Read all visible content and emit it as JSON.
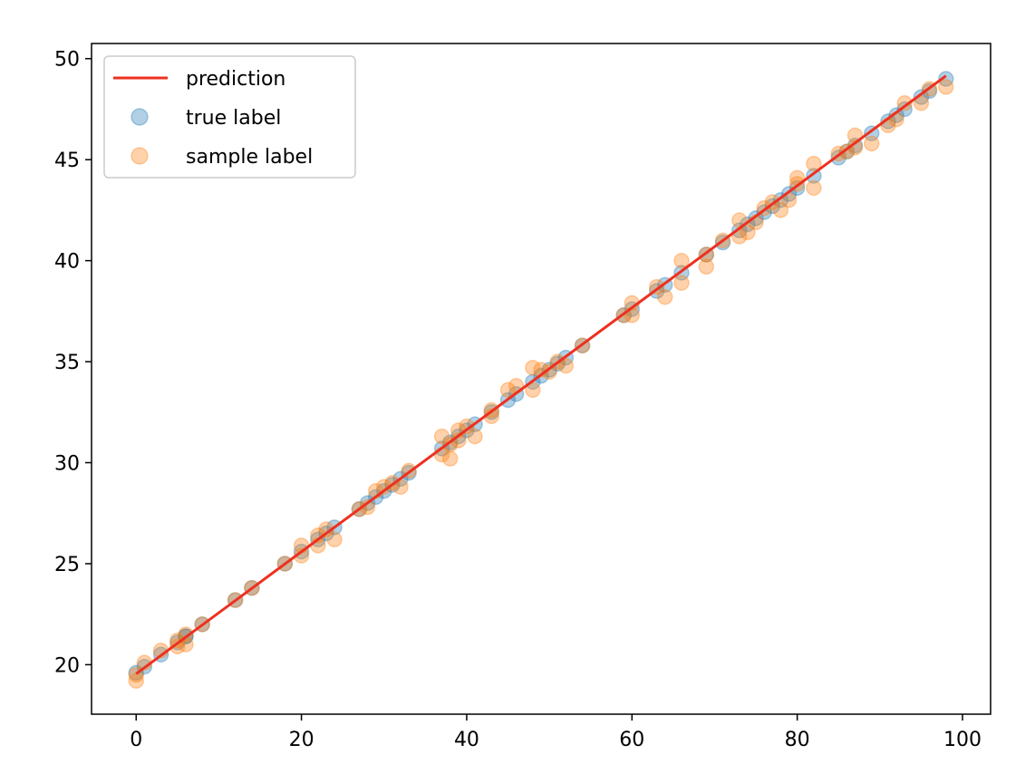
{
  "chart_data": {
    "type": "scatter",
    "title": "",
    "xlabel": "",
    "ylabel": "",
    "xlim": [
      -5.4,
      103.4
    ],
    "ylim": [
      17.55,
      50.75
    ],
    "xticks": [
      0,
      20,
      40,
      60,
      80,
      100
    ],
    "yticks": [
      20,
      25,
      30,
      35,
      40,
      45,
      50
    ],
    "xtick_labels": [
      "0",
      "20",
      "40",
      "60",
      "80",
      "100"
    ],
    "ytick_labels": [
      "20",
      "25",
      "30",
      "35",
      "40",
      "45",
      "50"
    ],
    "grid": false,
    "legend_position": "top-left",
    "series": [
      {
        "name": "prediction",
        "kind": "line",
        "color": "#ee3020",
        "x": [
          0,
          98
        ],
        "y": [
          19.55,
          49.15
        ]
      },
      {
        "name": "true label",
        "kind": "scatter",
        "color": "#1f77b4",
        "alpha": 0.35,
        "x": [
          0,
          1,
          3,
          5,
          6,
          6,
          8,
          12,
          14,
          18,
          20,
          22,
          23,
          24,
          27,
          28,
          29,
          30,
          31,
          32,
          33,
          37,
          38,
          39,
          40,
          41,
          43,
          45,
          46,
          48,
          49,
          50,
          51,
          52,
          54,
          59,
          60,
          63,
          64,
          66,
          69,
          71,
          73,
          74,
          75,
          76,
          77,
          78,
          79,
          80,
          82,
          85,
          86,
          87,
          89,
          91,
          92,
          93,
          95,
          96,
          98
        ],
        "y": [
          19.6,
          19.9,
          20.5,
          21.1,
          21.4,
          21.4,
          22.0,
          23.2,
          23.8,
          25.0,
          25.6,
          26.2,
          26.5,
          26.8,
          27.7,
          28.0,
          28.3,
          28.6,
          28.9,
          29.2,
          29.5,
          30.7,
          31.0,
          31.3,
          31.6,
          31.9,
          32.5,
          33.1,
          33.4,
          34.0,
          34.3,
          34.6,
          34.9,
          35.2,
          35.8,
          37.3,
          37.6,
          38.5,
          38.8,
          39.4,
          40.3,
          40.9,
          41.5,
          41.8,
          42.1,
          42.4,
          42.7,
          43.0,
          43.3,
          43.6,
          44.2,
          45.1,
          45.4,
          45.7,
          46.3,
          46.9,
          47.2,
          47.5,
          48.1,
          48.4,
          49.0
        ]
      },
      {
        "name": "sample label",
        "kind": "scatter",
        "color": "#ff7f0e",
        "alpha": 0.35,
        "x": [
          0,
          0,
          1,
          3,
          5,
          5,
          6,
          6,
          8,
          12,
          14,
          18,
          20,
          20,
          22,
          22,
          23,
          24,
          27,
          28,
          29,
          30,
          31,
          32,
          33,
          37,
          37,
          38,
          38,
          39,
          39,
          40,
          41,
          43,
          43,
          45,
          46,
          48,
          48,
          49,
          50,
          51,
          52,
          54,
          59,
          60,
          60,
          63,
          64,
          66,
          66,
          69,
          69,
          71,
          73,
          73,
          74,
          75,
          76,
          77,
          78,
          79,
          80,
          80,
          82,
          82,
          85,
          86,
          87,
          87,
          89,
          91,
          92,
          93,
          95,
          96,
          98
        ],
        "y": [
          19.2,
          19.5,
          20.1,
          20.7,
          21.2,
          20.9,
          21.0,
          21.5,
          22.0,
          23.2,
          23.8,
          25.0,
          25.4,
          25.9,
          25.9,
          26.4,
          26.7,
          26.2,
          27.7,
          27.8,
          28.6,
          28.8,
          29.0,
          28.8,
          29.6,
          30.4,
          31.3,
          30.2,
          30.9,
          31.1,
          31.6,
          31.8,
          31.3,
          32.3,
          32.6,
          33.6,
          33.8,
          33.6,
          34.7,
          34.6,
          34.5,
          35.0,
          34.8,
          35.8,
          37.3,
          37.3,
          37.9,
          38.7,
          38.2,
          38.9,
          40.0,
          40.3,
          39.7,
          41.0,
          41.2,
          42.0,
          41.4,
          41.9,
          42.6,
          42.9,
          42.5,
          43.0,
          43.8,
          44.1,
          43.6,
          44.8,
          45.3,
          45.4,
          45.6,
          46.2,
          45.8,
          46.7,
          47.0,
          47.8,
          47.8,
          48.5,
          48.6
        ]
      }
    ],
    "legend": [
      {
        "label": "prediction",
        "marker": "line",
        "color": "#ee3020"
      },
      {
        "label": "true label",
        "marker": "circle",
        "color": "#1f77b4"
      },
      {
        "label": "sample label",
        "marker": "circle",
        "color": "#ff7f0e"
      }
    ]
  }
}
